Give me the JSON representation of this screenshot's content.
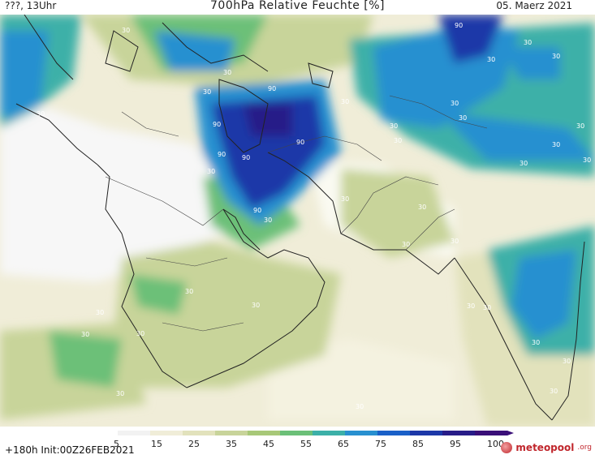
{
  "header": {
    "left": "???, 13Uhr",
    "title": "700hPa Relative Feuchte [%]",
    "date": "05. Maerz 2021"
  },
  "footer": {
    "run": "+180h Init:00Z26FEB2021",
    "logo_main": "meteopool",
    "logo_suffix": ".org"
  },
  "colorbar": {
    "ticks": [
      "5",
      "15",
      "25",
      "35",
      "45",
      "55",
      "65",
      "75",
      "85",
      "95",
      "100"
    ],
    "colors": [
      "#ffffff",
      "#f2f2f2",
      "#f0edd8",
      "#e2e2bc",
      "#c8d49a",
      "#a8c878",
      "#6cc078",
      "#3cb0a8",
      "#2890d0",
      "#1a60c8",
      "#1c38a8",
      "#281c88",
      "#3a0f78"
    ]
  },
  "contour_labels": [
    "30",
    "30",
    "30",
    "30",
    "30",
    "30",
    "30",
    "30",
    "30",
    "30",
    "30",
    "30",
    "30",
    "30",
    "30",
    "30",
    "30",
    "30",
    "30",
    "30",
    "30",
    "30",
    "30",
    "30",
    "30",
    "30",
    "30",
    "30",
    "30",
    "30",
    "30",
    "30",
    "30",
    "30",
    "90",
    "90",
    "90",
    "90",
    "90",
    "90",
    "90"
  ]
}
